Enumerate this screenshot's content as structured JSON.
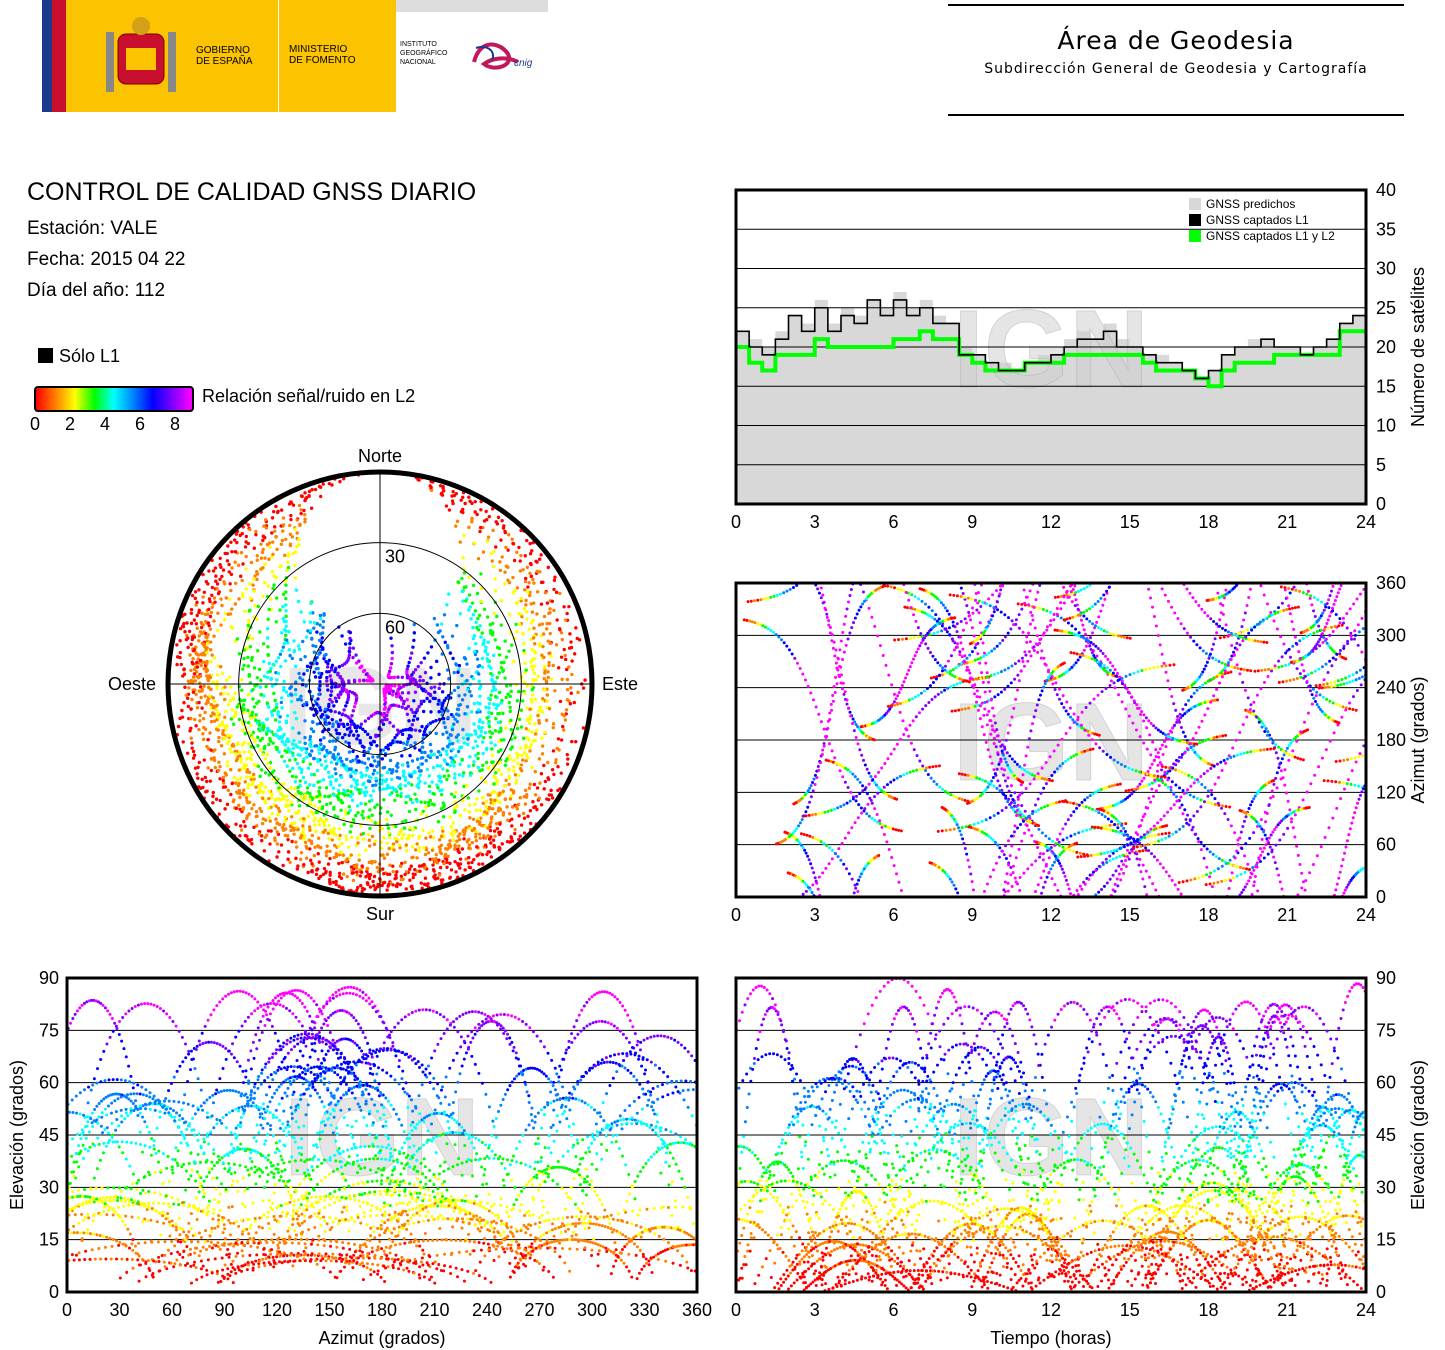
{
  "header": {
    "gobierno": "GOBIERNO\nDE ESPAÑA",
    "ministerio": "MINISTERIO\nDE FOMENTO",
    "instituto": "INSTITUTO\nGEOGRÁFICO\nNACIONAL",
    "cnig": "cnig",
    "area_title": "Área de Geodesia",
    "area_subtitle": "Subdirección General de Geodesia y Cartografía"
  },
  "info": {
    "title": "CONTROL DE CALIDAD GNSS DIARIO",
    "station": "Estación: VALE",
    "date": "Fecha: 2015 04 22",
    "doy": "Día del año: 112"
  },
  "legend": {
    "solo_l1": "Sólo L1",
    "snr_label": "Relación señal/ruido en L2",
    "snr_ticks": [
      "0",
      "2",
      "4",
      "6",
      "8"
    ],
    "snr_colors": [
      "#ff0000",
      "#ff8000",
      "#ffff00",
      "#00ff00",
      "#00ffff",
      "#0080ff",
      "#0000ff",
      "#8000ff",
      "#ff00ff"
    ]
  },
  "watermark": "IGN",
  "chart_data": [
    {
      "id": "satellite-count",
      "type": "area",
      "ylabel": "Número de satélites",
      "xlim": [
        0,
        24
      ],
      "ylim": [
        0,
        40
      ],
      "xticks": [
        "0",
        "3",
        "6",
        "9",
        "12",
        "15",
        "18",
        "21",
        "24"
      ],
      "yticks": [
        "0",
        "5",
        "10",
        "15",
        "20",
        "25",
        "30",
        "35",
        "40"
      ],
      "grid": true,
      "legend_position": "top-right",
      "x": [
        0,
        0.5,
        1,
        1.5,
        2,
        2.5,
        3,
        3.5,
        4,
        4.5,
        5,
        5.5,
        6,
        6.5,
        7,
        7.5,
        8,
        8.5,
        9,
        9.5,
        10,
        10.5,
        11,
        11.5,
        12,
        12.5,
        13,
        13.5,
        14,
        14.5,
        15,
        15.5,
        16,
        16.5,
        17,
        17.5,
        18,
        18.5,
        19,
        19.5,
        20,
        20.5,
        21,
        21.5,
        22,
        22.5,
        23,
        23.5,
        24
      ],
      "series": [
        {
          "name": "GNSS predichos",
          "color": "#d8d8d8",
          "values": [
            22,
            21,
            20,
            22,
            24,
            23,
            26,
            23,
            25,
            24,
            26,
            25,
            27,
            25,
            26,
            24,
            23,
            20,
            19,
            18,
            18,
            17,
            18,
            19,
            19,
            21,
            22,
            21,
            23,
            21,
            20,
            19,
            19,
            18,
            17,
            16,
            17,
            19,
            20,
            21,
            21,
            20,
            20,
            19,
            20,
            21,
            23,
            24,
            23
          ]
        },
        {
          "name": "GNSS captados L1",
          "color": "#000000",
          "values": [
            22,
            20,
            19,
            21,
            24,
            22,
            25,
            22,
            24,
            23,
            26,
            24,
            26,
            24,
            25,
            23,
            23,
            19,
            19,
            18,
            17,
            17,
            18,
            18,
            19,
            20,
            21,
            21,
            22,
            20,
            20,
            19,
            18,
            18,
            17,
            16,
            17,
            19,
            20,
            20,
            21,
            20,
            20,
            19,
            20,
            21,
            23,
            24,
            23
          ]
        },
        {
          "name": "GNSS captados L1 y L2",
          "color": "#00ff00",
          "values": [
            20,
            18,
            17,
            19,
            19,
            19,
            21,
            20,
            20,
            20,
            20,
            20,
            21,
            21,
            22,
            21,
            21,
            19,
            18,
            17,
            17,
            17,
            18,
            18,
            18,
            19,
            19,
            19,
            19,
            19,
            19,
            18,
            17,
            17,
            17,
            16,
            15,
            17,
            18,
            18,
            18,
            19,
            19,
            19,
            19,
            19,
            22,
            22,
            22
          ]
        }
      ]
    },
    {
      "id": "skyplot",
      "type": "scatter",
      "title": "",
      "directions": {
        "north": "Norte",
        "south": "Sur",
        "east": "Este",
        "west": "Oeste"
      },
      "rings": [
        "30",
        "60"
      ]
    },
    {
      "id": "azimuth-time",
      "type": "scatter",
      "ylabel": "Azimut (grados)",
      "xlim": [
        0,
        24
      ],
      "ylim": [
        0,
        360
      ],
      "xticks": [
        "0",
        "3",
        "6",
        "9",
        "12",
        "15",
        "18",
        "21",
        "24"
      ],
      "yticks": [
        "0",
        "60",
        "120",
        "180",
        "240",
        "300",
        "360"
      ]
    },
    {
      "id": "elevation-azimuth",
      "type": "scatter",
      "xlabel": "Azimut (grados)",
      "ylabel": "Elevación (grados)",
      "xlim": [
        0,
        360
      ],
      "ylim": [
        0,
        90
      ],
      "xticks": [
        "0",
        "30",
        "60",
        "90",
        "120",
        "150",
        "180",
        "210",
        "240",
        "270",
        "300",
        "330",
        "360"
      ],
      "yticks": [
        "0",
        "15",
        "30",
        "45",
        "60",
        "75",
        "90"
      ]
    },
    {
      "id": "elevation-time",
      "type": "scatter",
      "xlabel": "Tiempo (horas)",
      "ylabel": "Elevación (grados)",
      "xlim": [
        0,
        24
      ],
      "ylim": [
        0,
        90
      ],
      "xticks": [
        "0",
        "3",
        "6",
        "9",
        "12",
        "15",
        "18",
        "21",
        "24"
      ],
      "yticks": [
        "0",
        "15",
        "30",
        "45",
        "60",
        "75",
        "90"
      ]
    }
  ]
}
